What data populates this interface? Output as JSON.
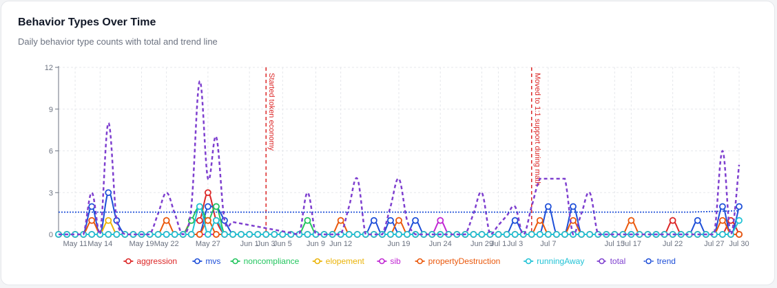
{
  "card": {
    "title": "Behavior Types Over Time",
    "subtitle": "Daily behavior type counts with total and trend line"
  },
  "chart_data": {
    "type": "line",
    "ylim": [
      0,
      12
    ],
    "yticks": [
      0,
      3,
      6,
      9,
      12
    ],
    "grid": true,
    "legend_position": "bottom",
    "x": [
      "May 9",
      "May 10",
      "May 11",
      "May 12",
      "May 13",
      "May 14",
      "May 15",
      "May 16",
      "May 17",
      "May 18",
      "May 19",
      "May 20",
      "May 21",
      "May 22",
      "May 23",
      "May 24",
      "May 25",
      "May 26",
      "May 27",
      "May 28",
      "May 29",
      "May 30",
      "May 31",
      "Jun 1",
      "Jun 2",
      "Jun 3",
      "Jun 4",
      "Jun 5",
      "Jun 6",
      "Jun 7",
      "Jun 8",
      "Jun 9",
      "Jun 10",
      "Jun 11",
      "Jun 12",
      "Jun 13",
      "Jun 14",
      "Jun 15",
      "Jun 16",
      "Jun 17",
      "Jun 18",
      "Jun 19",
      "Jun 20",
      "Jun 21",
      "Jun 22",
      "Jun 23",
      "Jun 24",
      "Jun 25",
      "Jun 26",
      "Jun 27",
      "Jun 28",
      "Jun 29",
      "Jun 30",
      "Jul 1",
      "Jul 2",
      "Jul 3",
      "Jul 4",
      "Jul 5",
      "Jul 6",
      "Jul 7",
      "Jul 8",
      "Jul 9",
      "Jul 10",
      "Jul 11",
      "Jul 12",
      "Jul 13",
      "Jul 14",
      "Jul 15",
      "Jul 16",
      "Jul 17",
      "Jul 18",
      "Jul 19",
      "Jul 20",
      "Jul 21",
      "Jul 22",
      "Jul 23",
      "Jul 24",
      "Jul 25",
      "Jul 26",
      "Jul 27",
      "Jul 28",
      "Jul 29",
      "Jul 30"
    ],
    "xtick_labels": [
      {
        "at": "May 11",
        "label": "May 11"
      },
      {
        "at": "May 14",
        "label": "May 14"
      },
      {
        "at": "May 19",
        "label": "May 19"
      },
      {
        "at": "May 22",
        "label": "May 22"
      },
      {
        "at": "May 27",
        "label": "May 27"
      },
      {
        "at": "Jun 1",
        "label": "Jun 1"
      },
      {
        "at": "Jun 3",
        "label": "Jun 3"
      },
      {
        "at": "Jun 5",
        "label": "Jun 5"
      },
      {
        "at": "Jun 9",
        "label": "Jun 9"
      },
      {
        "at": "Jun 12",
        "label": "Jun 12"
      },
      {
        "at": "Jun 19",
        "label": "Jun 19"
      },
      {
        "at": "Jun 24",
        "label": "Jun 24"
      },
      {
        "at": "Jun 29",
        "label": "Jun 29"
      },
      {
        "at": "Jul 1",
        "label": "Jul 1"
      },
      {
        "at": "Jul 3",
        "label": "Jul 3"
      },
      {
        "at": "Jul 7",
        "label": "Jul 7"
      },
      {
        "at": "Jul 15",
        "label": "Jul 15"
      },
      {
        "at": "Jul 17",
        "label": "Jul 17"
      },
      {
        "at": "Jul 22",
        "label": "Jul 22"
      },
      {
        "at": "Jul 27",
        "label": "Jul 27"
      },
      {
        "at": "Jul 30",
        "label": "Jul 30"
      }
    ],
    "annotations": [
      {
        "at": "Jun 3",
        "label": "Started token economy",
        "color": "#dc2626"
      },
      {
        "at": "Jul 5",
        "label": "Moved to 1:1 support during math",
        "color": "#dc2626"
      }
    ],
    "series": [
      {
        "name": "aggression",
        "color": "#dc2626",
        "style": "solid",
        "markers": true,
        "points": [
          [
            "May 25",
            1
          ],
          [
            "May 26",
            1
          ],
          [
            "May 27",
            3
          ],
          [
            "May 28",
            1
          ],
          [
            "Jul 22",
            1
          ],
          [
            "Jul 29",
            1
          ]
        ]
      },
      {
        "name": "mvs",
        "color": "#1d4ed8",
        "style": "solid",
        "markers": true,
        "points": [
          [
            "May 13",
            2
          ],
          [
            "May 15",
            3
          ],
          [
            "May 16",
            1
          ],
          [
            "May 27",
            2
          ],
          [
            "May 28",
            2
          ],
          [
            "May 29",
            1
          ],
          [
            "Jun 16",
            1
          ],
          [
            "Jun 18",
            1
          ],
          [
            "Jun 21",
            1
          ],
          [
            "Jul 3",
            1
          ],
          [
            "Jul 7",
            2
          ],
          [
            "Jul 10",
            2
          ],
          [
            "Jul 25",
            1
          ],
          [
            "Jul 28",
            2
          ],
          [
            "Jul 30",
            2
          ]
        ]
      },
      {
        "name": "noncompliance",
        "color": "#22c55e",
        "style": "solid",
        "markers": true,
        "points": [
          [
            "May 25",
            1
          ],
          [
            "May 26",
            2
          ],
          [
            "May 27",
            1
          ],
          [
            "May 28",
            2
          ],
          [
            "Jun 8",
            1
          ]
        ]
      },
      {
        "name": "elopement",
        "color": "#eab308",
        "style": "solid",
        "markers": true,
        "points": [
          [
            "May 15",
            1
          ],
          [
            "May 29",
            0
          ]
        ]
      },
      {
        "name": "sib",
        "color": "#c026d3",
        "style": "solid",
        "markers": true,
        "points": [
          [
            "May 27",
            0
          ],
          [
            "Jun 24",
            1
          ]
        ]
      },
      {
        "name": "propertyDestruction",
        "color": "#ea580c",
        "style": "solid",
        "markers": true,
        "points": [
          [
            "May 13",
            1
          ],
          [
            "May 22",
            1
          ],
          [
            "May 27",
            1
          ],
          [
            "Jun 12",
            1
          ],
          [
            "Jun 19",
            1
          ],
          [
            "Jul 6",
            1
          ],
          [
            "Jul 10",
            1
          ],
          [
            "Jul 17",
            1
          ],
          [
            "Jul 28",
            1
          ],
          [
            "Jul 30",
            0
          ]
        ]
      },
      {
        "name": "runningAway",
        "color": "#22c3d6",
        "style": "solid",
        "markers": true,
        "points": [
          [
            "May 26",
            2
          ],
          [
            "May 28",
            1
          ],
          [
            "Jul 30",
            1
          ]
        ]
      },
      {
        "name": "total",
        "color": "#7e3fcf",
        "style": "dashed",
        "markers": false,
        "points": [
          [
            "May 9",
            0
          ],
          [
            "May 12",
            0
          ],
          [
            "May 13",
            3
          ],
          [
            "May 14",
            0
          ],
          [
            "May 15",
            8
          ],
          [
            "May 16",
            1
          ],
          [
            "May 17",
            0
          ],
          [
            "May 20",
            0
          ],
          [
            "May 22",
            3
          ],
          [
            "May 24",
            0
          ],
          [
            "May 25",
            2
          ],
          [
            "May 26",
            11
          ],
          [
            "May 27",
            4
          ],
          [
            "May 28",
            7
          ],
          [
            "May 29",
            1
          ],
          [
            "Jun 7",
            0
          ],
          [
            "Jun 8",
            3
          ],
          [
            "Jun 9",
            0
          ],
          [
            "Jun 12",
            0
          ],
          [
            "Jun 14",
            4
          ],
          [
            "Jun 15",
            0
          ],
          [
            "Jun 17",
            0
          ],
          [
            "Jun 19",
            4
          ],
          [
            "Jun 20",
            1
          ],
          [
            "Jun 21",
            0
          ],
          [
            "Jun 27",
            0
          ],
          [
            "Jun 29",
            3
          ],
          [
            "Jun 30",
            0
          ],
          [
            "Jul 3",
            2
          ],
          [
            "Jul 4",
            0
          ],
          [
            "Jul 6",
            4
          ],
          [
            "Jul 7",
            4
          ],
          [
            "Jul 9",
            4
          ],
          [
            "Jul 10",
            0
          ],
          [
            "Jul 12",
            3
          ],
          [
            "Jul 13",
            0
          ],
          [
            "Jul 27",
            0
          ],
          [
            "Jul 28",
            6
          ],
          [
            "Jul 29",
            0
          ],
          [
            "Jul 30",
            5
          ]
        ]
      },
      {
        "name": "trend",
        "color": "#1d4ed8",
        "style": "dotted",
        "markers": false,
        "points": [
          [
            "May 9",
            1.6
          ],
          [
            "Jul 24",
            1.6
          ],
          [
            "Jul 30",
            1.7
          ]
        ]
      }
    ]
  }
}
